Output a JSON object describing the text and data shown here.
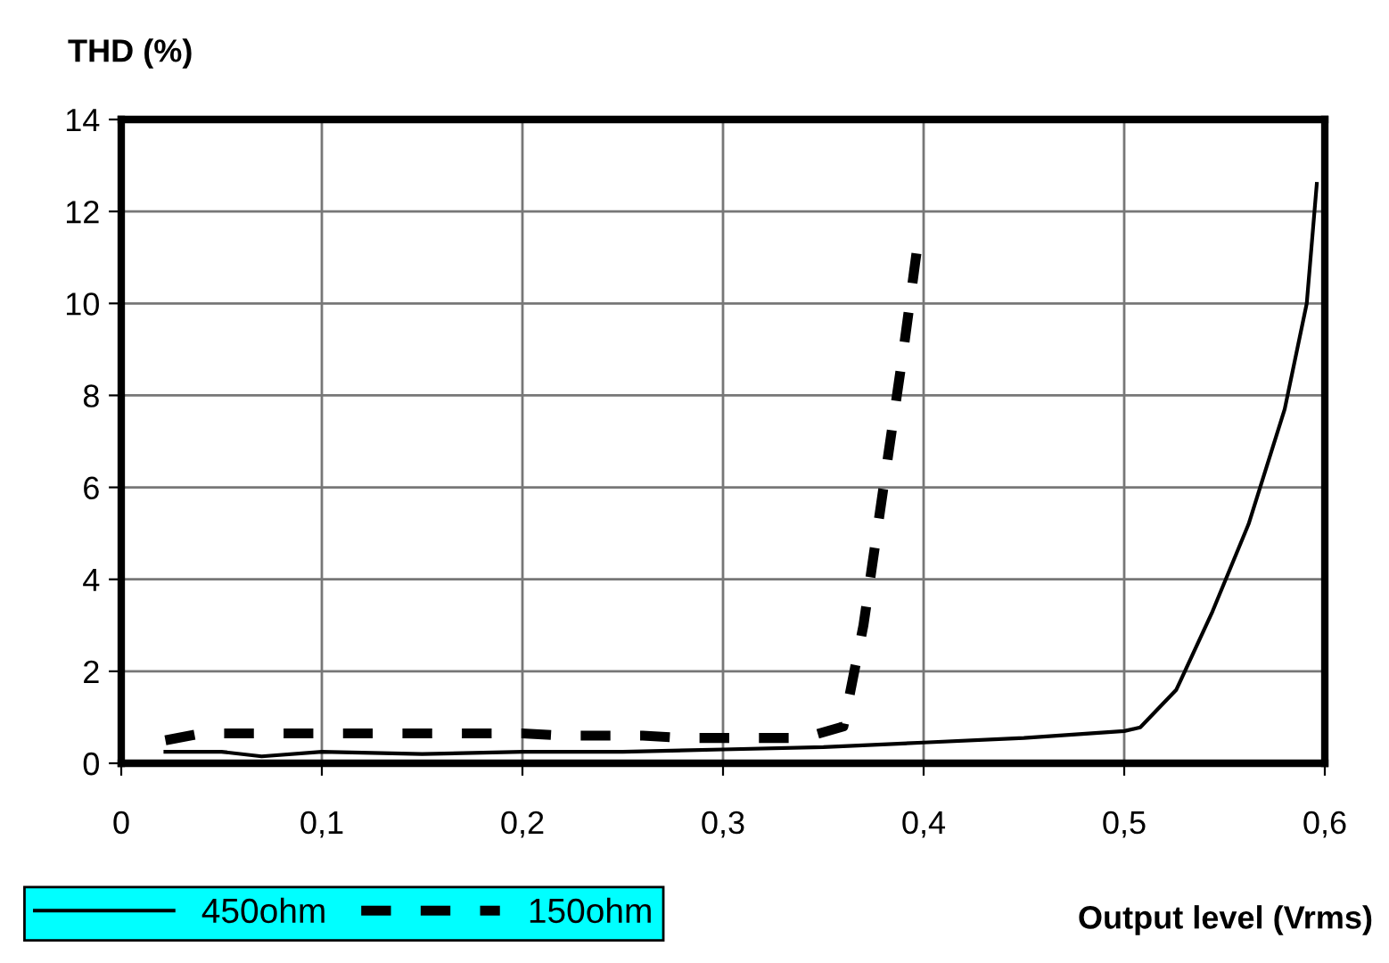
{
  "chart_data": {
    "type": "line",
    "ylabel": "THD (%)",
    "xlabel": "Output level (Vrms)",
    "xlim": [
      0,
      0.6
    ],
    "xticks": [
      {
        "value": 0,
        "label": "0"
      },
      {
        "value": 0.1,
        "label": "0,1"
      },
      {
        "value": 0.2,
        "label": "0,2"
      },
      {
        "value": 0.3,
        "label": "0,3"
      },
      {
        "value": 0.4,
        "label": "0,4"
      },
      {
        "value": 0.5,
        "label": "0,5"
      },
      {
        "value": 0.6,
        "label": "0,6"
      }
    ],
    "ylim": [
      0,
      14
    ],
    "yticks": [
      0,
      2,
      4,
      6,
      8,
      10,
      12,
      14
    ],
    "grid": true,
    "legend": "bottom left",
    "marker": "none",
    "series": [
      {
        "name": "450ohm",
        "color": "#000000",
        "line_style": "solid",
        "x": [
          0.022,
          0.05,
          0.07,
          0.1,
          0.15,
          0.2,
          0.25,
          0.3,
          0.35,
          0.4,
          0.45,
          0.5,
          0.508,
          0.526,
          0.544,
          0.562,
          0.58,
          0.591,
          0.596
        ],
        "values": [
          0.25,
          0.25,
          0.15,
          0.25,
          0.2,
          0.25,
          0.25,
          0.3,
          0.35,
          0.45,
          0.55,
          0.7,
          0.78,
          1.6,
          3.3,
          5.2,
          7.7,
          10,
          12.6
        ]
      },
      {
        "name": "150ohm",
        "color": "#000000",
        "line_style": "dashed",
        "x": [
          0.022,
          0.04,
          0.06,
          0.08,
          0.1,
          0.12,
          0.14,
          0.16,
          0.18,
          0.2,
          0.22,
          0.24,
          0.26,
          0.28,
          0.3,
          0.32,
          0.34,
          0.36,
          0.37,
          0.38,
          0.39,
          0.398
        ],
        "values": [
          0.5,
          0.65,
          0.65,
          0.65,
          0.65,
          0.65,
          0.65,
          0.65,
          0.65,
          0.65,
          0.6,
          0.6,
          0.6,
          0.55,
          0.55,
          0.55,
          0.55,
          0.8,
          3.0,
          6.0,
          9.0,
          11.6
        ]
      }
    ]
  }
}
